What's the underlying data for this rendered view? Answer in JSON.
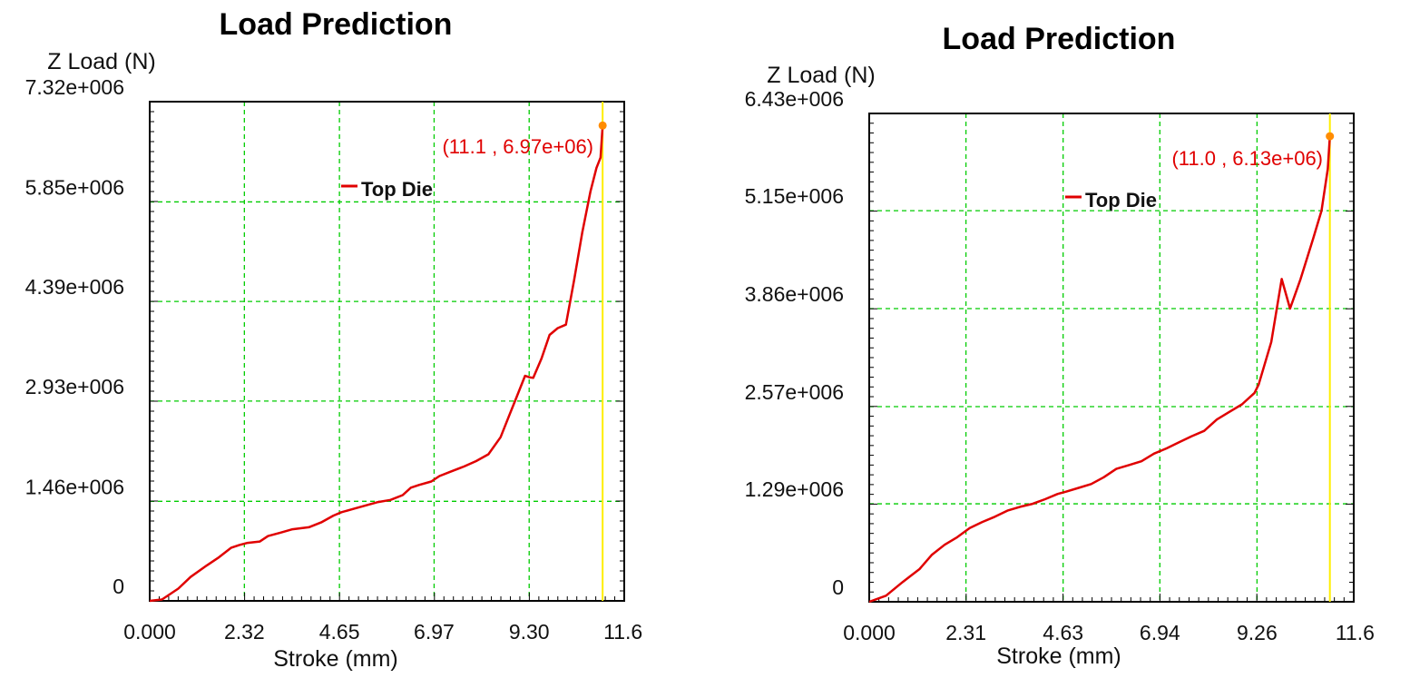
{
  "colors": {
    "series": "#e00000",
    "grid": "#00cc00",
    "marker_line": "#ffee00",
    "marker_dot": "#ff8c00",
    "annotation": "#e00000",
    "axes": "#000000"
  },
  "chart_data": [
    {
      "type": "line",
      "title": "Load Prediction",
      "ylabel": "Z Load (N)",
      "xlabel": "Stroke (mm)",
      "xlim": [
        0,
        11.63
      ],
      "ylim": [
        0,
        7320000
      ],
      "x_ticks": [
        0,
        2.32,
        4.65,
        6.97,
        9.3,
        11.6
      ],
      "x_tick_labels": [
        "0.000",
        "2.32",
        "4.65",
        "6.97",
        "9.30",
        "11.6"
      ],
      "y_ticks": [
        0,
        1460000,
        2930000,
        4390000,
        5850000,
        7320000
      ],
      "y_tick_labels": [
        "0",
        "1.46e+006",
        "2.93e+006",
        "4.39e+006",
        "5.85e+006",
        "7.32e+006"
      ],
      "grid": true,
      "legend_position": "top-center",
      "series": [
        {
          "name": "Top Die",
          "x": [
            0,
            0.3,
            0.7,
            1.0,
            1.4,
            1.7,
            2.0,
            2.2,
            2.4,
            2.7,
            2.9,
            3.2,
            3.5,
            3.9,
            4.2,
            4.5,
            4.7,
            5.0,
            5.3,
            5.6,
            5.9,
            6.2,
            6.4,
            6.6,
            6.9,
            7.1,
            7.4,
            7.7,
            8.0,
            8.3,
            8.6,
            8.8,
            9.0,
            9.2,
            9.3,
            9.4,
            9.6,
            9.8,
            10.0,
            10.2,
            10.4,
            10.6,
            10.8,
            10.95,
            11.05,
            11.1
          ],
          "y": [
            0,
            20000,
            180000,
            350000,
            520000,
            640000,
            780000,
            820000,
            850000,
            870000,
            950000,
            1000000,
            1050000,
            1080000,
            1150000,
            1250000,
            1300000,
            1350000,
            1400000,
            1450000,
            1480000,
            1550000,
            1660000,
            1700000,
            1750000,
            1830000,
            1900000,
            1970000,
            2050000,
            2150000,
            2400000,
            2700000,
            3000000,
            3300000,
            3280000,
            3270000,
            3550000,
            3900000,
            4000000,
            4050000,
            4700000,
            5400000,
            6000000,
            6350000,
            6500000,
            6970000
          ]
        }
      ],
      "marker": {
        "x": 11.1,
        "y": 6970000,
        "label": "(11.1 , 6.97e+06)"
      }
    },
    {
      "type": "line",
      "title": "Load Prediction",
      "ylabel": "Z Load (N)",
      "xlabel": "Stroke (mm)",
      "xlim": [
        0,
        11.57
      ],
      "ylim": [
        0,
        6430000
      ],
      "x_ticks": [
        0,
        2.31,
        4.63,
        6.94,
        9.26,
        11.6
      ],
      "x_tick_labels": [
        "0.000",
        "2.31",
        "4.63",
        "6.94",
        "9.26",
        "11.6"
      ],
      "y_ticks": [
        0,
        1290000,
        2570000,
        3860000,
        5150000,
        6430000
      ],
      "y_tick_labels": [
        "0",
        "1.29e+006",
        "2.57e+006",
        "3.86e+006",
        "5.15e+006",
        "6.43e+006"
      ],
      "grid": true,
      "legend_position": "top-center",
      "series": [
        {
          "name": "Top Die",
          "x": [
            0,
            0.4,
            0.8,
            1.2,
            1.5,
            1.8,
            2.1,
            2.4,
            2.7,
            3.0,
            3.3,
            3.6,
            3.9,
            4.2,
            4.5,
            4.7,
            5.0,
            5.3,
            5.6,
            5.9,
            6.2,
            6.5,
            6.8,
            7.1,
            7.4,
            7.7,
            8.0,
            8.3,
            8.6,
            8.9,
            9.2,
            9.3,
            9.6,
            9.85,
            10.05,
            10.3,
            10.6,
            10.8,
            10.95,
            11.0
          ],
          "y": [
            0,
            80000,
            260000,
            430000,
            620000,
            750000,
            850000,
            970000,
            1050000,
            1120000,
            1200000,
            1250000,
            1290000,
            1350000,
            1420000,
            1450000,
            1500000,
            1550000,
            1640000,
            1750000,
            1800000,
            1850000,
            1950000,
            2020000,
            2100000,
            2180000,
            2250000,
            2400000,
            2500000,
            2600000,
            2750000,
            2860000,
            3420000,
            4250000,
            3860000,
            4250000,
            4780000,
            5150000,
            5700000,
            6130000
          ]
        }
      ],
      "marker": {
        "x": 11.0,
        "y": 6130000,
        "label": "(11.0 , 6.13e+06)"
      }
    }
  ]
}
